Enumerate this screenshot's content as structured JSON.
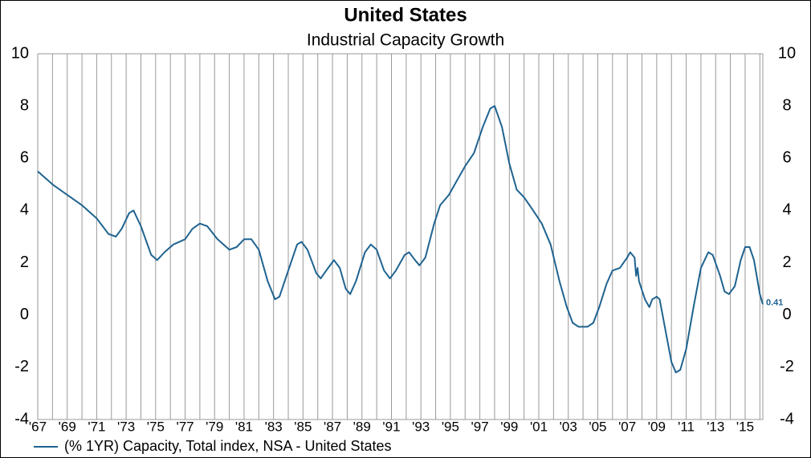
{
  "chart_data": {
    "type": "line",
    "title": "United States",
    "subtitle": "Industrial Capacity Growth",
    "x": [
      1967.0,
      1968,
      1969,
      1970,
      1971,
      1971.8,
      1972.3,
      1972.7,
      1973.2,
      1973.5,
      1974,
      1974.7,
      1975.1,
      1975.6,
      1976.2,
      1977,
      1977.5,
      1978,
      1978.5,
      1979.2,
      1980,
      1980.5,
      1981,
      1981.5,
      1982,
      1982.6,
      1983.1,
      1983.4,
      1984,
      1984.6,
      1984.9,
      1985.3,
      1985.9,
      1986.2,
      1986.7,
      1987.1,
      1987.5,
      1987.9,
      1988.2,
      1988.6,
      1989.2,
      1989.6,
      1990,
      1990.5,
      1990.9,
      1991.3,
      1991.9,
      1992.2,
      1992.6,
      1992.9,
      1993.3,
      1993.9,
      1994.3,
      1994.9,
      1995.5,
      1996,
      1996.6,
      1997.2,
      1997.7,
      1998,
      1998.5,
      1999,
      1999.5,
      2000,
      2000.5,
      2001.2,
      2001.8,
      2002.4,
      2002.9,
      2003.3,
      2003.7,
      2004.3,
      2004.7,
      2005.1,
      2005.6,
      2006,
      2006.5,
      2007,
      2007.2,
      2007.5,
      2007.6,
      2007.7,
      2007.8,
      2008.2,
      2008.5,
      2008.7,
      2009,
      2009.2,
      2009.5,
      2010,
      2010.3,
      2010.6,
      2011,
      2011.5,
      2012,
      2012.5,
      2012.8,
      2013.3,
      2013.6,
      2013.9,
      2014.3,
      2014.7,
      2015,
      2015.3,
      2015.6,
      2016,
      2016.2
    ],
    "series": [
      {
        "name": "(% 1YR) Capacity, Total index, NSA - United States",
        "color": "#1f6390",
        "values": [
          5.5,
          5.0,
          4.6,
          4.2,
          3.7,
          3.1,
          3.0,
          3.3,
          3.9,
          4.0,
          3.4,
          2.3,
          2.1,
          2.4,
          2.7,
          2.9,
          3.3,
          3.5,
          3.4,
          2.9,
          2.5,
          2.6,
          2.9,
          2.9,
          2.5,
          1.3,
          0.6,
          0.7,
          1.7,
          2.7,
          2.8,
          2.5,
          1.6,
          1.4,
          1.8,
          2.1,
          1.8,
          1.0,
          0.8,
          1.3,
          2.4,
          2.7,
          2.5,
          1.7,
          1.4,
          1.7,
          2.3,
          2.4,
          2.1,
          1.9,
          2.2,
          3.5,
          4.2,
          4.6,
          5.2,
          5.7,
          6.2,
          7.2,
          7.9,
          8.0,
          7.2,
          5.8,
          4.8,
          4.5,
          4.1,
          3.5,
          2.7,
          1.3,
          0.3,
          -0.3,
          -0.45,
          -0.45,
          -0.3,
          0.3,
          1.2,
          1.7,
          1.8,
          2.2,
          2.4,
          2.2,
          1.5,
          1.8,
          1.3,
          0.6,
          0.3,
          0.6,
          0.7,
          0.6,
          -0.3,
          -1.8,
          -2.2,
          -2.1,
          -1.3,
          0.3,
          1.8,
          2.4,
          2.3,
          1.5,
          0.9,
          0.8,
          1.1,
          2.1,
          2.6,
          2.6,
          2.1,
          0.8,
          0.41
        ],
        "value_labels": [
          null,
          null,
          null,
          null,
          null,
          null,
          null,
          null,
          null,
          null,
          null,
          null,
          null,
          null,
          null,
          null,
          null,
          null,
          null,
          null,
          null,
          null,
          null,
          null,
          null,
          null,
          null,
          null,
          null,
          null,
          null,
          null,
          null,
          null,
          null,
          null,
          null,
          null,
          null,
          null,
          null,
          null,
          null,
          null,
          null,
          null,
          null,
          null,
          null,
          null,
          null,
          null,
          null,
          null,
          null,
          null,
          null,
          null,
          null,
          null,
          null,
          null,
          null,
          null,
          null,
          null,
          null,
          null,
          null,
          null,
          null,
          null,
          null,
          null,
          null,
          null,
          null,
          null,
          null,
          null,
          null,
          null,
          null,
          null,
          null,
          null,
          null,
          null,
          null,
          null,
          null,
          null,
          null,
          null,
          null,
          null,
          null,
          null,
          null,
          null,
          null,
          null,
          null,
          null,
          null,
          null,
          "0.41"
        ]
      }
    ],
    "xlim": [
      1967,
      2016.2
    ],
    "xticks": [
      {
        "value": 1967,
        "label": "'67"
      },
      {
        "value": 1969,
        "label": "'69"
      },
      {
        "value": 1971,
        "label": "'71"
      },
      {
        "value": 1973,
        "label": "'73"
      },
      {
        "value": 1975,
        "label": "'75"
      },
      {
        "value": 1977,
        "label": "'77"
      },
      {
        "value": 1979,
        "label": "'79"
      },
      {
        "value": 1981,
        "label": "'81"
      },
      {
        "value": 1983,
        "label": "'83"
      },
      {
        "value": 1985,
        "label": "'85"
      },
      {
        "value": 1987,
        "label": "'87"
      },
      {
        "value": 1989,
        "label": "'89"
      },
      {
        "value": 1991,
        "label": "'91"
      },
      {
        "value": 1993,
        "label": "'93"
      },
      {
        "value": 1995,
        "label": "'95"
      },
      {
        "value": 1997,
        "label": "'97"
      },
      {
        "value": 1999,
        "label": "'99"
      },
      {
        "value": 2001,
        "label": "'01"
      },
      {
        "value": 2003,
        "label": "'03"
      },
      {
        "value": 2005,
        "label": "'05"
      },
      {
        "value": 2007,
        "label": "'07"
      },
      {
        "value": 2009,
        "label": "'09"
      },
      {
        "value": 2011,
        "label": "'11"
      },
      {
        "value": 2013,
        "label": "'13"
      },
      {
        "value": 2015,
        "label": "'15"
      }
    ],
    "xminorticks": [
      1968,
      1970,
      1972,
      1974,
      1976,
      1978,
      1980,
      1982,
      1984,
      1986,
      1988,
      1990,
      1992,
      1994,
      1996,
      1998,
      2000,
      2002,
      2004,
      2006,
      2008,
      2010,
      2012,
      2014,
      2016
    ],
    "ylim": [
      -4,
      10
    ],
    "yticks": [
      -4,
      -2,
      0,
      2,
      4,
      6,
      8,
      10
    ],
    "y2lim": [
      -4,
      10
    ],
    "y2ticks": [
      -4,
      -2,
      0,
      2,
      4,
      6,
      8,
      10
    ],
    "grid": true
  }
}
